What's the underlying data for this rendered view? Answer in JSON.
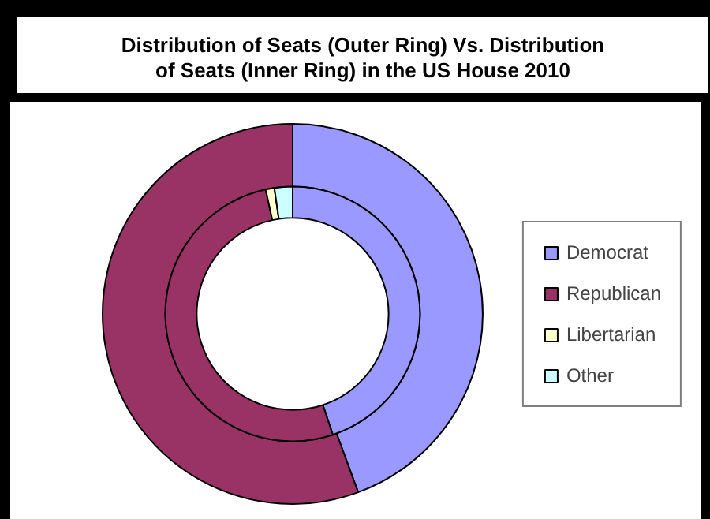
{
  "chart_data": {
    "type": "donut",
    "title": "Distribution of Seats (Outer Ring) Vs. Distribution of Seats (Inner Ring) in the US House 2010",
    "categories": [
      "Democrat",
      "Republican",
      "Libertarian",
      "Other"
    ],
    "colors": [
      "#9999ff",
      "#993366",
      "#ffffcc",
      "#ccffff"
    ],
    "series": [
      {
        "values": [
          44.4,
          55.6,
          0,
          0
        ]
      },
      {
        "values": [
          44.9,
          51.7,
          1.1,
          2.3
        ]
      }
    ],
    "legend": "right"
  }
}
